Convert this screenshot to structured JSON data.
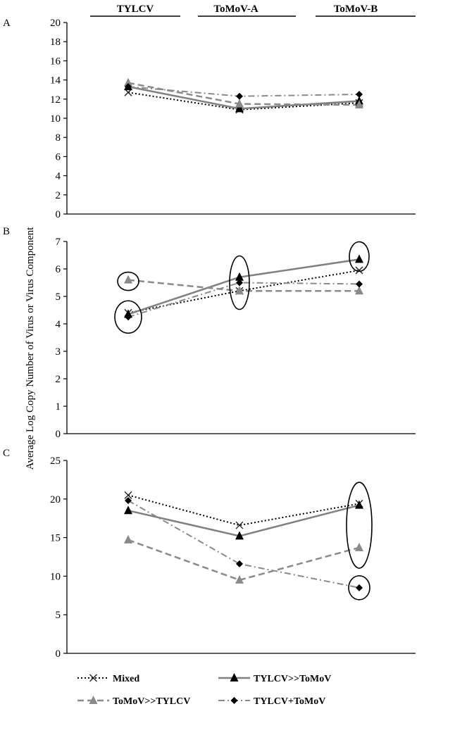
{
  "headers": [
    "TYLCV",
    "ToMoV-A",
    "ToMoV-B"
  ],
  "y_axis_label": "Average Log Copy Number of Virus or Virus Component",
  "legend": [
    {
      "key": "mixed",
      "label": "Mixed"
    },
    {
      "key": "ty_to",
      "label": "TYLCV>>ToMoV"
    },
    {
      "key": "to_ty",
      "label": "ToMoV>>TYLCV"
    },
    {
      "key": "plus",
      "label": "TYLCV+ToMoV"
    }
  ],
  "styles": {
    "mixed": {
      "color": "#000000",
      "dash": "2,3",
      "width": 2,
      "marker": "x",
      "marker_color": "#222222"
    },
    "ty_to": {
      "color": "#808080",
      "dash": "",
      "width": 2.5,
      "marker": "triangle",
      "marker_color": "#000000"
    },
    "to_ty": {
      "color": "#8a8a8a",
      "dash": "9,5",
      "width": 2.5,
      "marker": "triangle",
      "marker_color": "#8a8a8a"
    },
    "plus": {
      "color": "#8a8a8a",
      "dash": "9,4,2,4",
      "width": 2,
      "marker": "diamond",
      "marker_color": "#000000"
    }
  },
  "chart_data": [
    {
      "type": "line",
      "panel": "A",
      "categories": [
        "TYLCV",
        "ToMoV-A",
        "ToMoV-B"
      ],
      "ylim": [
        0,
        20
      ],
      "yticks": [
        0,
        2,
        4,
        6,
        8,
        10,
        12,
        14,
        16,
        18,
        20
      ],
      "series": [
        {
          "key": "mixed",
          "name": "Mixed",
          "values": [
            12.7,
            10.9,
            11.6
          ]
        },
        {
          "key": "ty_to",
          "name": "TYLCV>>ToMoV",
          "values": [
            13.3,
            11.0,
            11.8
          ]
        },
        {
          "key": "to_ty",
          "name": "ToMoV>>TYLCV",
          "values": [
            13.7,
            11.5,
            11.4
          ]
        },
        {
          "key": "plus",
          "name": "TYLCV+ToMoV",
          "values": [
            13.3,
            12.3,
            12.5
          ]
        }
      ],
      "circles": []
    },
    {
      "type": "line",
      "panel": "B",
      "categories": [
        "TYLCV",
        "ToMoV-A",
        "ToMoV-B"
      ],
      "ylim": [
        0,
        7
      ],
      "yticks": [
        0,
        1,
        2,
        3,
        4,
        5,
        6,
        7
      ],
      "series": [
        {
          "key": "mixed",
          "name": "Mixed",
          "values": [
            4.4,
            5.2,
            5.95
          ]
        },
        {
          "key": "ty_to",
          "name": "TYLCV>>ToMoV",
          "values": [
            4.35,
            5.7,
            6.35
          ]
        },
        {
          "key": "to_ty",
          "name": "ToMoV>>TYLCV",
          "values": [
            5.6,
            5.2,
            5.2
          ]
        },
        {
          "key": "plus",
          "name": "TYLCV+ToMoV",
          "values": [
            4.25,
            5.5,
            5.45
          ]
        }
      ],
      "circles": [
        {
          "category": 0,
          "y": 5.55,
          "rx": 15,
          "ry": 13
        },
        {
          "category": 0,
          "y": 4.25,
          "rx": 19,
          "ry": 23
        },
        {
          "category": 1,
          "y": 5.5,
          "rx": 14,
          "ry": 38
        },
        {
          "category": 2,
          "y": 6.45,
          "rx": 14,
          "ry": 21
        }
      ]
    },
    {
      "type": "line",
      "panel": "C",
      "categories": [
        "TYLCV",
        "ToMoV-A",
        "ToMoV-B"
      ],
      "ylim": [
        0,
        25
      ],
      "yticks": [
        0,
        5,
        10,
        15,
        20,
        25
      ],
      "series": [
        {
          "key": "mixed",
          "name": "Mixed",
          "values": [
            20.5,
            16.6,
            19.4
          ]
        },
        {
          "key": "ty_to",
          "name": "TYLCV>>ToMoV",
          "values": [
            18.5,
            15.2,
            19.2
          ]
        },
        {
          "key": "to_ty",
          "name": "ToMoV>>TYLCV",
          "values": [
            14.7,
            9.5,
            13.7
          ]
        },
        {
          "key": "plus",
          "name": "TYLCV+ToMoV",
          "values": [
            19.8,
            11.6,
            8.5
          ]
        }
      ],
      "circles": [
        {
          "category": 2,
          "y": 16.6,
          "rx": 18,
          "ry": 61
        },
        {
          "category": 2,
          "y": 8.5,
          "rx": 15,
          "ry": 17
        }
      ]
    }
  ]
}
